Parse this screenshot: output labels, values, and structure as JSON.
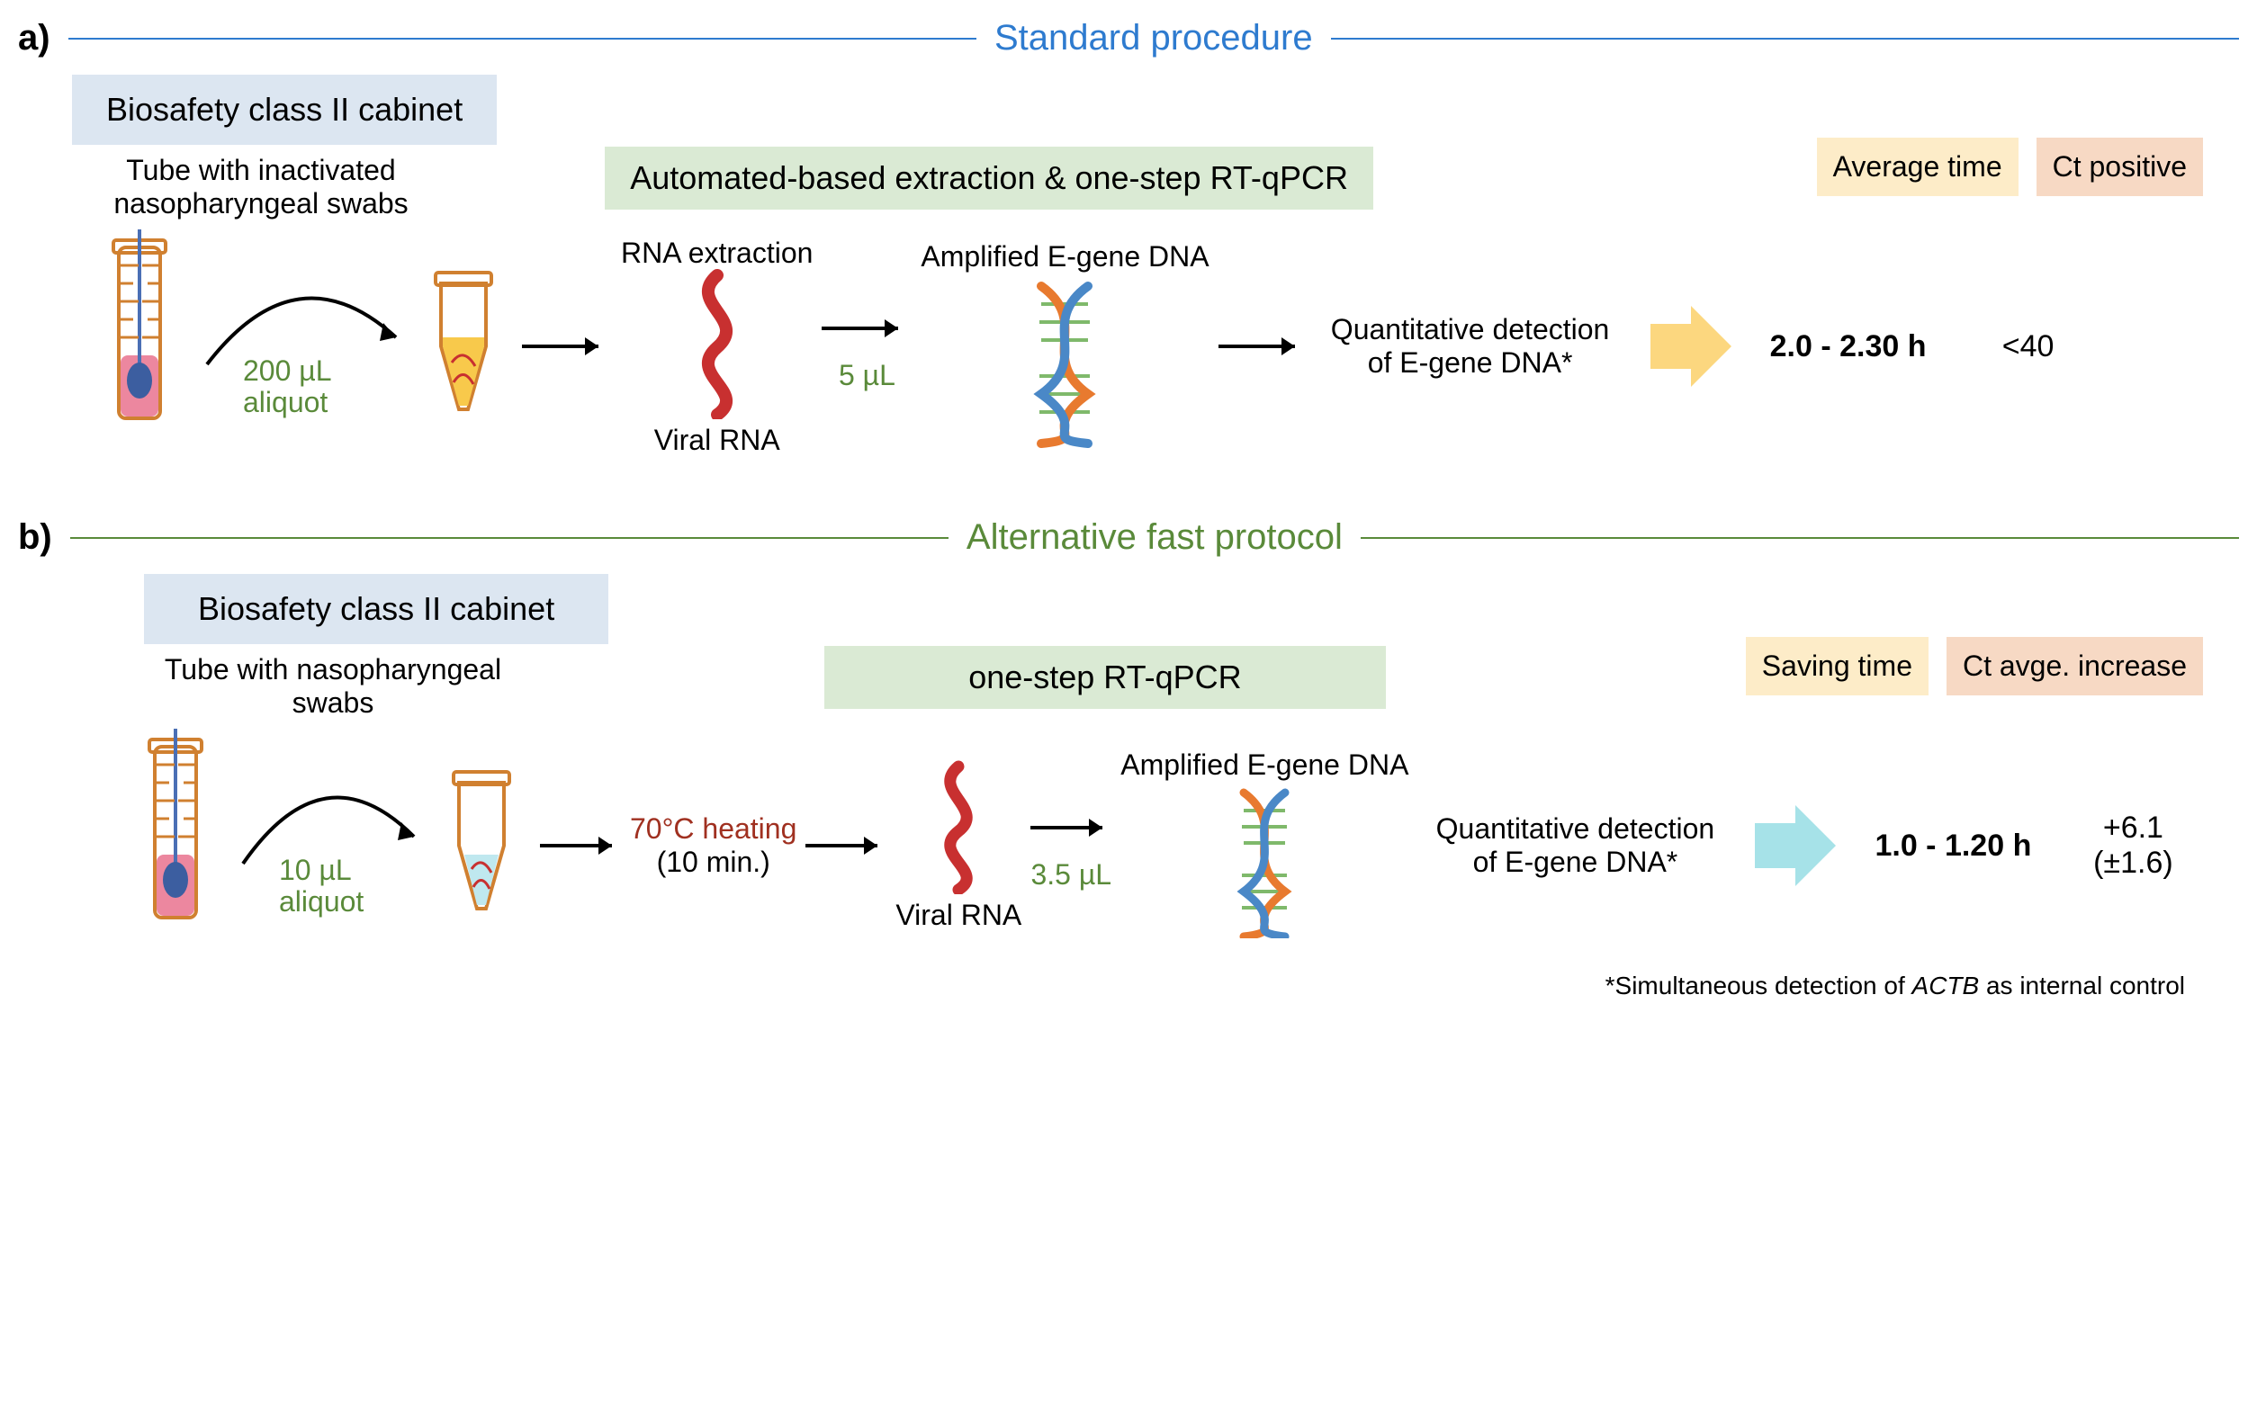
{
  "panelA": {
    "letter": "a)",
    "title": "Standard procedure",
    "title_color": "#2e7bcf",
    "rule_color": "#2e7bcf",
    "biosafety_label": "Biosafety class II cabinet",
    "biosafety_bg": "#dce6f1",
    "tube_label": "Tube with inactivated nasopharyngeal swabs",
    "aliquot_label": "200 µL aliquot",
    "aliquot_color": "#5a8a3a",
    "green_banner": "Automated-based extraction & one-step RT-qPCR",
    "green_banner_bg": "#daead4",
    "rna_extraction_label": "RNA extraction",
    "viral_rna_label": "Viral RNA",
    "step_volume": "5 µL",
    "amplified_label": "Amplified E-gene DNA",
    "detection_label": "Quantitative detection of E-gene DNA*",
    "arrow_fill": "#fcd77f",
    "time_header": "Average time",
    "time_header_bg": "#fdecc8",
    "ct_header": "Ct positive",
    "ct_header_bg": "#f7d9c4",
    "time_value": "2.0 - 2.30 h",
    "ct_value": "<40",
    "tube_liquid_color": "#ec879f",
    "microtube_liquid_color": "#f8c94b"
  },
  "panelB": {
    "letter": "b)",
    "title": "Alternative fast protocol",
    "title_color": "#5a8a3a",
    "rule_color": "#5a8a3a",
    "biosafety_label": "Biosafety class II cabinet",
    "biosafety_bg": "#dce6f1",
    "tube_label": "Tube with nasopharyngeal swabs",
    "aliquot_label": "10 µL aliquot",
    "aliquot_color": "#5a8a3a",
    "green_banner": "one-step RT-qPCR",
    "green_banner_bg": "#daead4",
    "heating_label": "70°C heating",
    "heating_color": "#a03020",
    "heating_time": "(10 min.)",
    "viral_rna_label": "Viral RNA",
    "step_volume": "3.5 µL",
    "amplified_label": "Amplified E-gene DNA",
    "detection_label": "Quantitative detection of E-gene DNA*",
    "arrow_fill": "#a6e2e8",
    "time_header": "Saving time",
    "time_header_bg": "#fdecc8",
    "ct_header": "Ct avge. increase",
    "ct_header_bg": "#f7d9c4",
    "time_value": "1.0 - 1.20 h",
    "ct_value": "+6.1",
    "ct_sd": "(±1.6)",
    "tube_liquid_color": "#ec879f",
    "microtube_liquid_color": "#bfe8ef"
  },
  "footnote": "*Simultaneous detection of ACTB as internal control",
  "footnote_italic_word": "ACTB",
  "icons": {
    "rna_helix_color": "#c83030",
    "dna_colors": {
      "strand1": "#e87a2f",
      "strand2": "#4a88c7",
      "bars": "#7fb96b"
    },
    "swab_stick": "#4a6fb5",
    "swab_tip": "#3c5ea0",
    "tube_outline": "#d08030",
    "microtube_outline": "#d08030",
    "arrow_stroke": "#000000"
  }
}
